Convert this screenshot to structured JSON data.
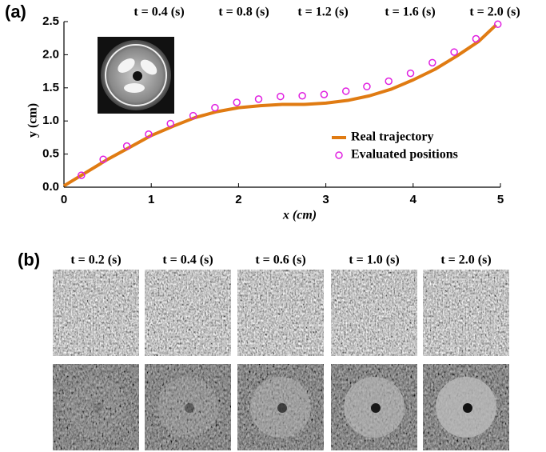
{
  "panels": [
    "(a)",
    "(b)"
  ],
  "chart_data": {
    "type": "line",
    "xlabel": "x (cm)",
    "ylabel": "y (cm)",
    "xlim": [
      0,
      5
    ],
    "xticks": [
      0,
      1,
      2,
      3,
      4,
      5
    ],
    "ylim": [
      0,
      2.5
    ],
    "yticks": [
      {
        "value": 0,
        "label": "0.0"
      },
      0.5,
      {
        "value": 1,
        "label": "1.0"
      },
      1.5,
      {
        "value": 2,
        "label": "2.0"
      },
      2.5
    ],
    "annotations": [
      "t = 0.4 (s)",
      "t = 0.8 (s)",
      "t = 1.2 (s)",
      "t = 1.6 (s)",
      "t = 2.0 (s)"
    ],
    "legend": "center right",
    "series": [
      {
        "name": "Real trajectory",
        "type": "line",
        "color": "#e07b12",
        "x": [
          0,
          0.25,
          0.5,
          0.75,
          1,
          1.25,
          1.5,
          1.75,
          2,
          2.25,
          2.5,
          2.75,
          3,
          3.25,
          3.5,
          3.75,
          4,
          4.25,
          4.5,
          4.75,
          4.95
        ],
        "values": [
          0.02,
          0.22,
          0.42,
          0.6,
          0.78,
          0.92,
          1.05,
          1.14,
          1.2,
          1.23,
          1.25,
          1.25,
          1.27,
          1.31,
          1.38,
          1.48,
          1.62,
          1.78,
          1.98,
          2.2,
          2.45
        ]
      },
      {
        "name": "Evaluated positions",
        "type": "scatter",
        "color": "#e020e0",
        "x": [
          0.2,
          0.45,
          0.72,
          0.97,
          1.22,
          1.48,
          1.73,
          1.98,
          2.23,
          2.48,
          2.73,
          2.98,
          3.23,
          3.47,
          3.72,
          3.97,
          4.22,
          4.47,
          4.72,
          4.97
        ],
        "values": [
          0.18,
          0.42,
          0.62,
          0.8,
          0.96,
          1.08,
          1.2,
          1.28,
          1.33,
          1.37,
          1.38,
          1.4,
          1.45,
          1.52,
          1.6,
          1.72,
          1.88,
          2.04,
          2.24,
          2.46
        ]
      }
    ]
  },
  "panel_b": {
    "columns": [
      "t = 0.2 (s)",
      "t = 0.4 (s)",
      "t = 0.6 (s)",
      "t = 1.0 (s)",
      "t = 2.0 (s)"
    ]
  }
}
